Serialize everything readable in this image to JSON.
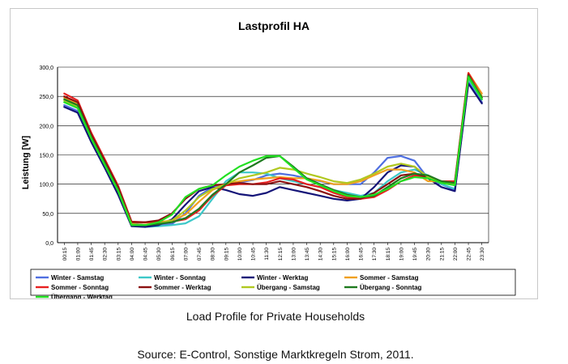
{
  "figure": {
    "caption": "Load Profile for Private Households",
    "source": "Source: E-Control, Sonstige Marktkregeln Strom, 2011."
  },
  "chart_data": {
    "type": "line",
    "title": "Lastprofil HA",
    "xlabel": "",
    "ylabel": "Leistung [W]",
    "ylim": [
      0,
      300
    ],
    "yticks": [
      "0,0",
      "50,0",
      "100,0",
      "150,0",
      "200,0",
      "250,0",
      "300,0"
    ],
    "grid": "horizontal",
    "legend_position": "bottom",
    "x": [
      "00:15",
      "01:00",
      "01:45",
      "02:30",
      "03:15",
      "04:00",
      "04:45",
      "05:30",
      "06:15",
      "07:00",
      "07:45",
      "08:30",
      "09:15",
      "10:00",
      "10:45",
      "11:30",
      "12:15",
      "13:00",
      "13:45",
      "14:30",
      "15:15",
      "16:00",
      "16:45",
      "17:30",
      "18:15",
      "19:00",
      "19:45",
      "20:30",
      "21:15",
      "22:00",
      "22:45",
      "23:30"
    ],
    "series": [
      {
        "name": "Winter - Samstag",
        "color": "#4f6fe0",
        "values": [
          235,
          225,
          175,
          130,
          85,
          33,
          30,
          30,
          32,
          50,
          80,
          95,
          100,
          103,
          107,
          115,
          118,
          115,
          110,
          105,
          100,
          100,
          100,
          120,
          145,
          148,
          140,
          110,
          100,
          90,
          275,
          240
        ]
      },
      {
        "name": "Winter - Sonntag",
        "color": "#3cc8c8",
        "values": [
          240,
          230,
          178,
          133,
          88,
          30,
          27,
          28,
          30,
          33,
          45,
          75,
          105,
          120,
          120,
          118,
          110,
          105,
          100,
          95,
          90,
          85,
          80,
          85,
          105,
          120,
          125,
          115,
          100,
          92,
          280,
          245
        ]
      },
      {
        "name": "Winter - Werktag",
        "color": "#141478",
        "values": [
          232,
          222,
          172,
          128,
          82,
          28,
          27,
          30,
          40,
          65,
          88,
          95,
          90,
          83,
          80,
          85,
          95,
          90,
          85,
          80,
          75,
          72,
          75,
          95,
          120,
          132,
          130,
          110,
          95,
          88,
          272,
          238
        ]
      },
      {
        "name": "Sommer - Samstag",
        "color": "#f0a020",
        "values": [
          248,
          238,
          182,
          138,
          92,
          35,
          34,
          35,
          38,
          48,
          70,
          90,
          100,
          105,
          108,
          110,
          112,
          110,
          110,
          106,
          100,
          100,
          105,
          115,
          125,
          125,
          120,
          105,
          105,
          105,
          290,
          255
        ]
      },
      {
        "name": "Sommer - Sonntag",
        "color": "#e82020",
        "values": [
          255,
          243,
          188,
          143,
          97,
          36,
          35,
          35,
          36,
          40,
          55,
          80,
          98,
          100,
          100,
          103,
          110,
          108,
          100,
          95,
          85,
          78,
          75,
          78,
          90,
          105,
          115,
          112,
          105,
          105,
          290,
          250
        ]
      },
      {
        "name": "Sommer - Werktag",
        "color": "#8b1010",
        "values": [
          250,
          240,
          185,
          140,
          95,
          35,
          35,
          38,
          50,
          75,
          92,
          98,
          100,
          102,
          100,
          100,
          105,
          100,
          95,
          88,
          80,
          75,
          75,
          85,
          100,
          115,
          118,
          112,
          105,
          100,
          287,
          248
        ]
      },
      {
        "name": "Übergang - Samstag",
        "color": "#b0c820",
        "values": [
          243,
          233,
          180,
          135,
          90,
          32,
          30,
          33,
          38,
          55,
          78,
          92,
          100,
          110,
          115,
          120,
          128,
          125,
          118,
          112,
          105,
          102,
          108,
          118,
          130,
          135,
          130,
          112,
          102,
          100,
          285,
          250
        ]
      },
      {
        "name": "Übergang - Sonntag",
        "color": "#1e7a1e",
        "values": [
          245,
          235,
          180,
          136,
          90,
          30,
          30,
          32,
          35,
          42,
          58,
          82,
          100,
          120,
          132,
          145,
          148,
          130,
          110,
          100,
          90,
          82,
          78,
          80,
          95,
          110,
          118,
          115,
          105,
          102,
          285,
          248
        ]
      },
      {
        "name": "Übergang - Werktag",
        "color": "#22e022",
        "values": [
          240,
          230,
          178,
          133,
          88,
          30,
          30,
          35,
          48,
          78,
          92,
          98,
          115,
          130,
          140,
          148,
          148,
          128,
          108,
          98,
          88,
          80,
          78,
          82,
          92,
          105,
          112,
          110,
          102,
          98,
          283,
          245
        ]
      }
    ]
  }
}
